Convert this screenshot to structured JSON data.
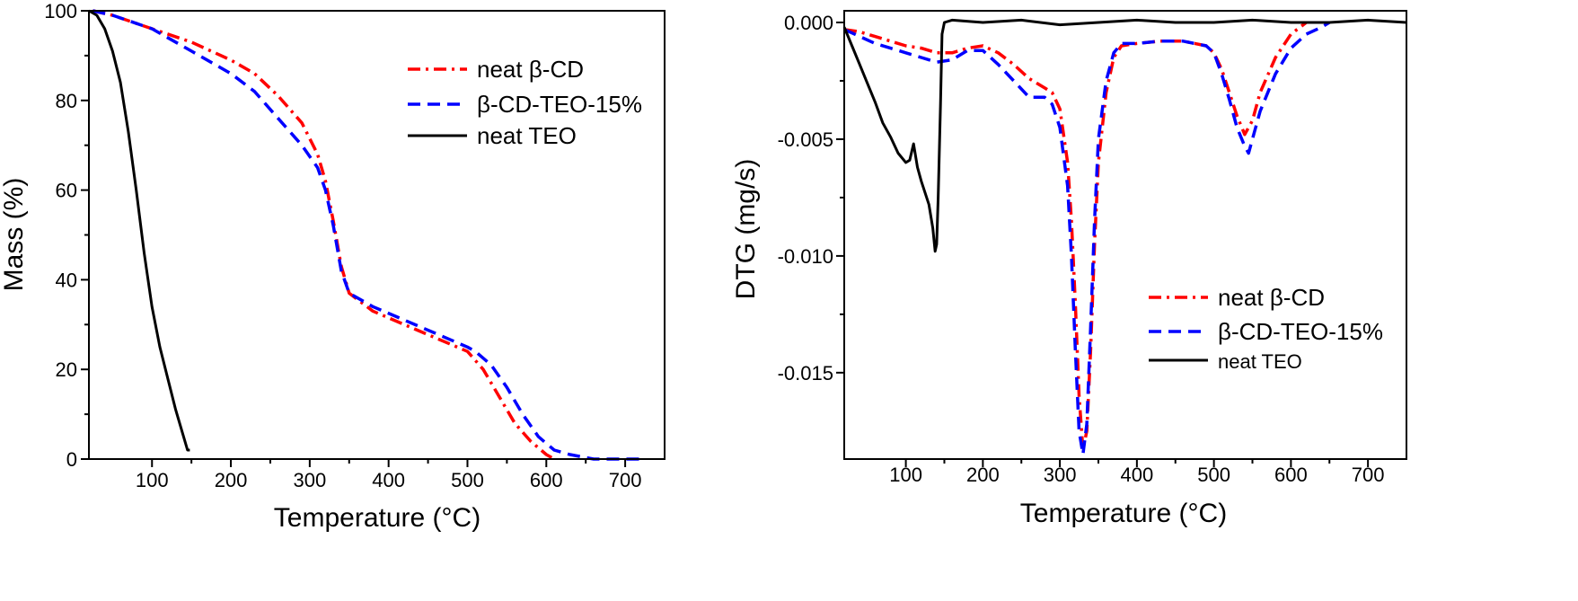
{
  "colors": {
    "beta_cd": "#ff0000",
    "beta_cd_teo": "#0000ff",
    "teo": "#000000"
  },
  "chart_data": [
    {
      "type": "line",
      "xlabel": "Temperature (°C)",
      "ylabel": "Mass (%)",
      "xlim": [
        20,
        750
      ],
      "ylim": [
        0,
        100
      ],
      "xticks": [
        100,
        200,
        300,
        400,
        500,
        600,
        700
      ],
      "yticks": [
        0,
        20,
        40,
        60,
        80,
        100
      ],
      "xtick_labels": [
        "100",
        "200",
        "300",
        "400",
        "500",
        "600",
        "700"
      ],
      "ytick_labels": [
        "0",
        "20",
        "40",
        "60",
        "80",
        "100"
      ],
      "legend_position": "top-right",
      "series": [
        {
          "name": "neat β-CD",
          "style": "dash-dot",
          "color": "#ff0000",
          "x": [
            25,
            50,
            100,
            150,
            200,
            230,
            260,
            290,
            310,
            320,
            330,
            340,
            350,
            380,
            420,
            460,
            500,
            520,
            540,
            560,
            580,
            600,
            610
          ],
          "y": [
            100,
            99,
            96,
            93,
            89,
            86,
            81,
            75,
            68,
            62,
            53,
            43,
            37,
            33,
            30,
            27,
            24,
            20,
            14,
            8,
            4,
            1,
            0
          ]
        },
        {
          "name": "β-CD-TEO-15%",
          "style": "dash",
          "color": "#0000ff",
          "x": [
            25,
            50,
            100,
            150,
            200,
            230,
            260,
            290,
            310,
            320,
            330,
            340,
            350,
            380,
            420,
            460,
            500,
            510,
            530,
            550,
            570,
            590,
            610,
            630,
            660,
            720
          ],
          "y": [
            100,
            99,
            96,
            91,
            86,
            82,
            76,
            70,
            65,
            60,
            52,
            42,
            37,
            34,
            31,
            28,
            25,
            24,
            21,
            16,
            10,
            5,
            2,
            1,
            0,
            0
          ]
        },
        {
          "name": "neat TEO",
          "style": "solid",
          "color": "#000000",
          "x": [
            20,
            30,
            40,
            50,
            60,
            70,
            80,
            90,
            100,
            110,
            120,
            130,
            140,
            145,
            148
          ],
          "y": [
            100,
            99,
            96,
            91,
            84,
            73,
            60,
            46,
            34,
            25,
            18,
            11,
            5,
            2,
            2
          ]
        }
      ]
    },
    {
      "type": "line",
      "xlabel": "Temperature (°C)",
      "ylabel": "DTG (mg/s)",
      "xlim": [
        20,
        750
      ],
      "ylim": [
        -0.0187,
        0.0005
      ],
      "xticks": [
        100,
        200,
        300,
        400,
        500,
        600,
        700
      ],
      "yticks": [
        0.0,
        -0.005,
        -0.01,
        -0.015
      ],
      "xtick_labels": [
        "100",
        "200",
        "300",
        "400",
        "500",
        "600",
        "700"
      ],
      "ytick_labels": [
        "0.000",
        "-0.005",
        "-0.010",
        "-0.015"
      ],
      "legend_position": "bottom-right",
      "series": [
        {
          "name": "neat β-CD",
          "style": "dash-dot",
          "color": "#ff0000",
          "x": [
            20,
            40,
            60,
            80,
            100,
            120,
            140,
            160,
            180,
            200,
            220,
            240,
            260,
            280,
            290,
            300,
            310,
            315,
            320,
            325,
            330,
            335,
            340,
            345,
            350,
            360,
            370,
            380,
            400,
            430,
            460,
            490,
            500,
            510,
            520,
            530,
            540,
            550,
            560,
            580,
            600,
            620
          ],
          "y": [
            -0.0003,
            -0.0004,
            -0.0006,
            -0.0008,
            -0.001,
            -0.0011,
            -0.0013,
            -0.0013,
            -0.0011,
            -0.001,
            -0.0013,
            -0.0018,
            -0.0024,
            -0.0028,
            -0.003,
            -0.0037,
            -0.006,
            -0.0085,
            -0.012,
            -0.016,
            -0.0183,
            -0.0175,
            -0.014,
            -0.0095,
            -0.006,
            -0.003,
            -0.0015,
            -0.001,
            -0.0009,
            -0.0008,
            -0.0008,
            -0.001,
            -0.0013,
            -0.002,
            -0.003,
            -0.004,
            -0.0048,
            -0.0042,
            -0.003,
            -0.0015,
            -0.0005,
            0.0
          ]
        },
        {
          "name": "β-CD-TEO-15%",
          "style": "dash",
          "color": "#0000ff",
          "x": [
            20,
            40,
            60,
            80,
            100,
            120,
            140,
            160,
            180,
            200,
            220,
            240,
            260,
            280,
            290,
            300,
            310,
            315,
            320,
            325,
            330,
            335,
            340,
            345,
            350,
            360,
            370,
            380,
            400,
            430,
            460,
            490,
            500,
            510,
            520,
            530,
            540,
            545,
            550,
            560,
            580,
            600,
            620,
            640,
            650
          ],
          "y": [
            -0.0003,
            -0.0006,
            -0.0009,
            -0.0011,
            -0.0013,
            -0.0015,
            -0.0017,
            -0.0016,
            -0.0012,
            -0.0012,
            -0.0018,
            -0.0025,
            -0.0032,
            -0.0032,
            -0.0035,
            -0.0045,
            -0.007,
            -0.01,
            -0.014,
            -0.0175,
            -0.0185,
            -0.0172,
            -0.013,
            -0.0085,
            -0.005,
            -0.0025,
            -0.0013,
            -0.0009,
            -0.0009,
            -0.0008,
            -0.0008,
            -0.001,
            -0.0013,
            -0.0022,
            -0.0033,
            -0.0045,
            -0.0053,
            -0.0056,
            -0.005,
            -0.0038,
            -0.0022,
            -0.0011,
            -0.0005,
            -0.0002,
            0.0
          ]
        },
        {
          "name": "neat TEO",
          "style": "solid",
          "color": "#000000",
          "x": [
            20,
            30,
            40,
            50,
            60,
            70,
            80,
            90,
            100,
            105,
            110,
            115,
            120,
            130,
            135,
            138,
            140,
            142,
            145,
            147,
            150,
            160,
            200,
            250,
            300,
            350,
            400,
            450,
            500,
            550,
            600,
            650,
            700,
            750
          ],
          "y": [
            -0.0002,
            -0.001,
            -0.0018,
            -0.0026,
            -0.0034,
            -0.0043,
            -0.0049,
            -0.0056,
            -0.006,
            -0.0059,
            -0.0052,
            -0.0062,
            -0.0068,
            -0.0078,
            -0.0088,
            -0.0098,
            -0.0095,
            -0.0075,
            -0.0035,
            -0.0005,
            0.0,
            0.0001,
            0.0,
            0.0001,
            -0.0001,
            0.0,
            0.0001,
            0.0,
            0.0,
            0.0001,
            0.0,
            0.0,
            0.0001,
            0.0
          ]
        }
      ]
    }
  ]
}
